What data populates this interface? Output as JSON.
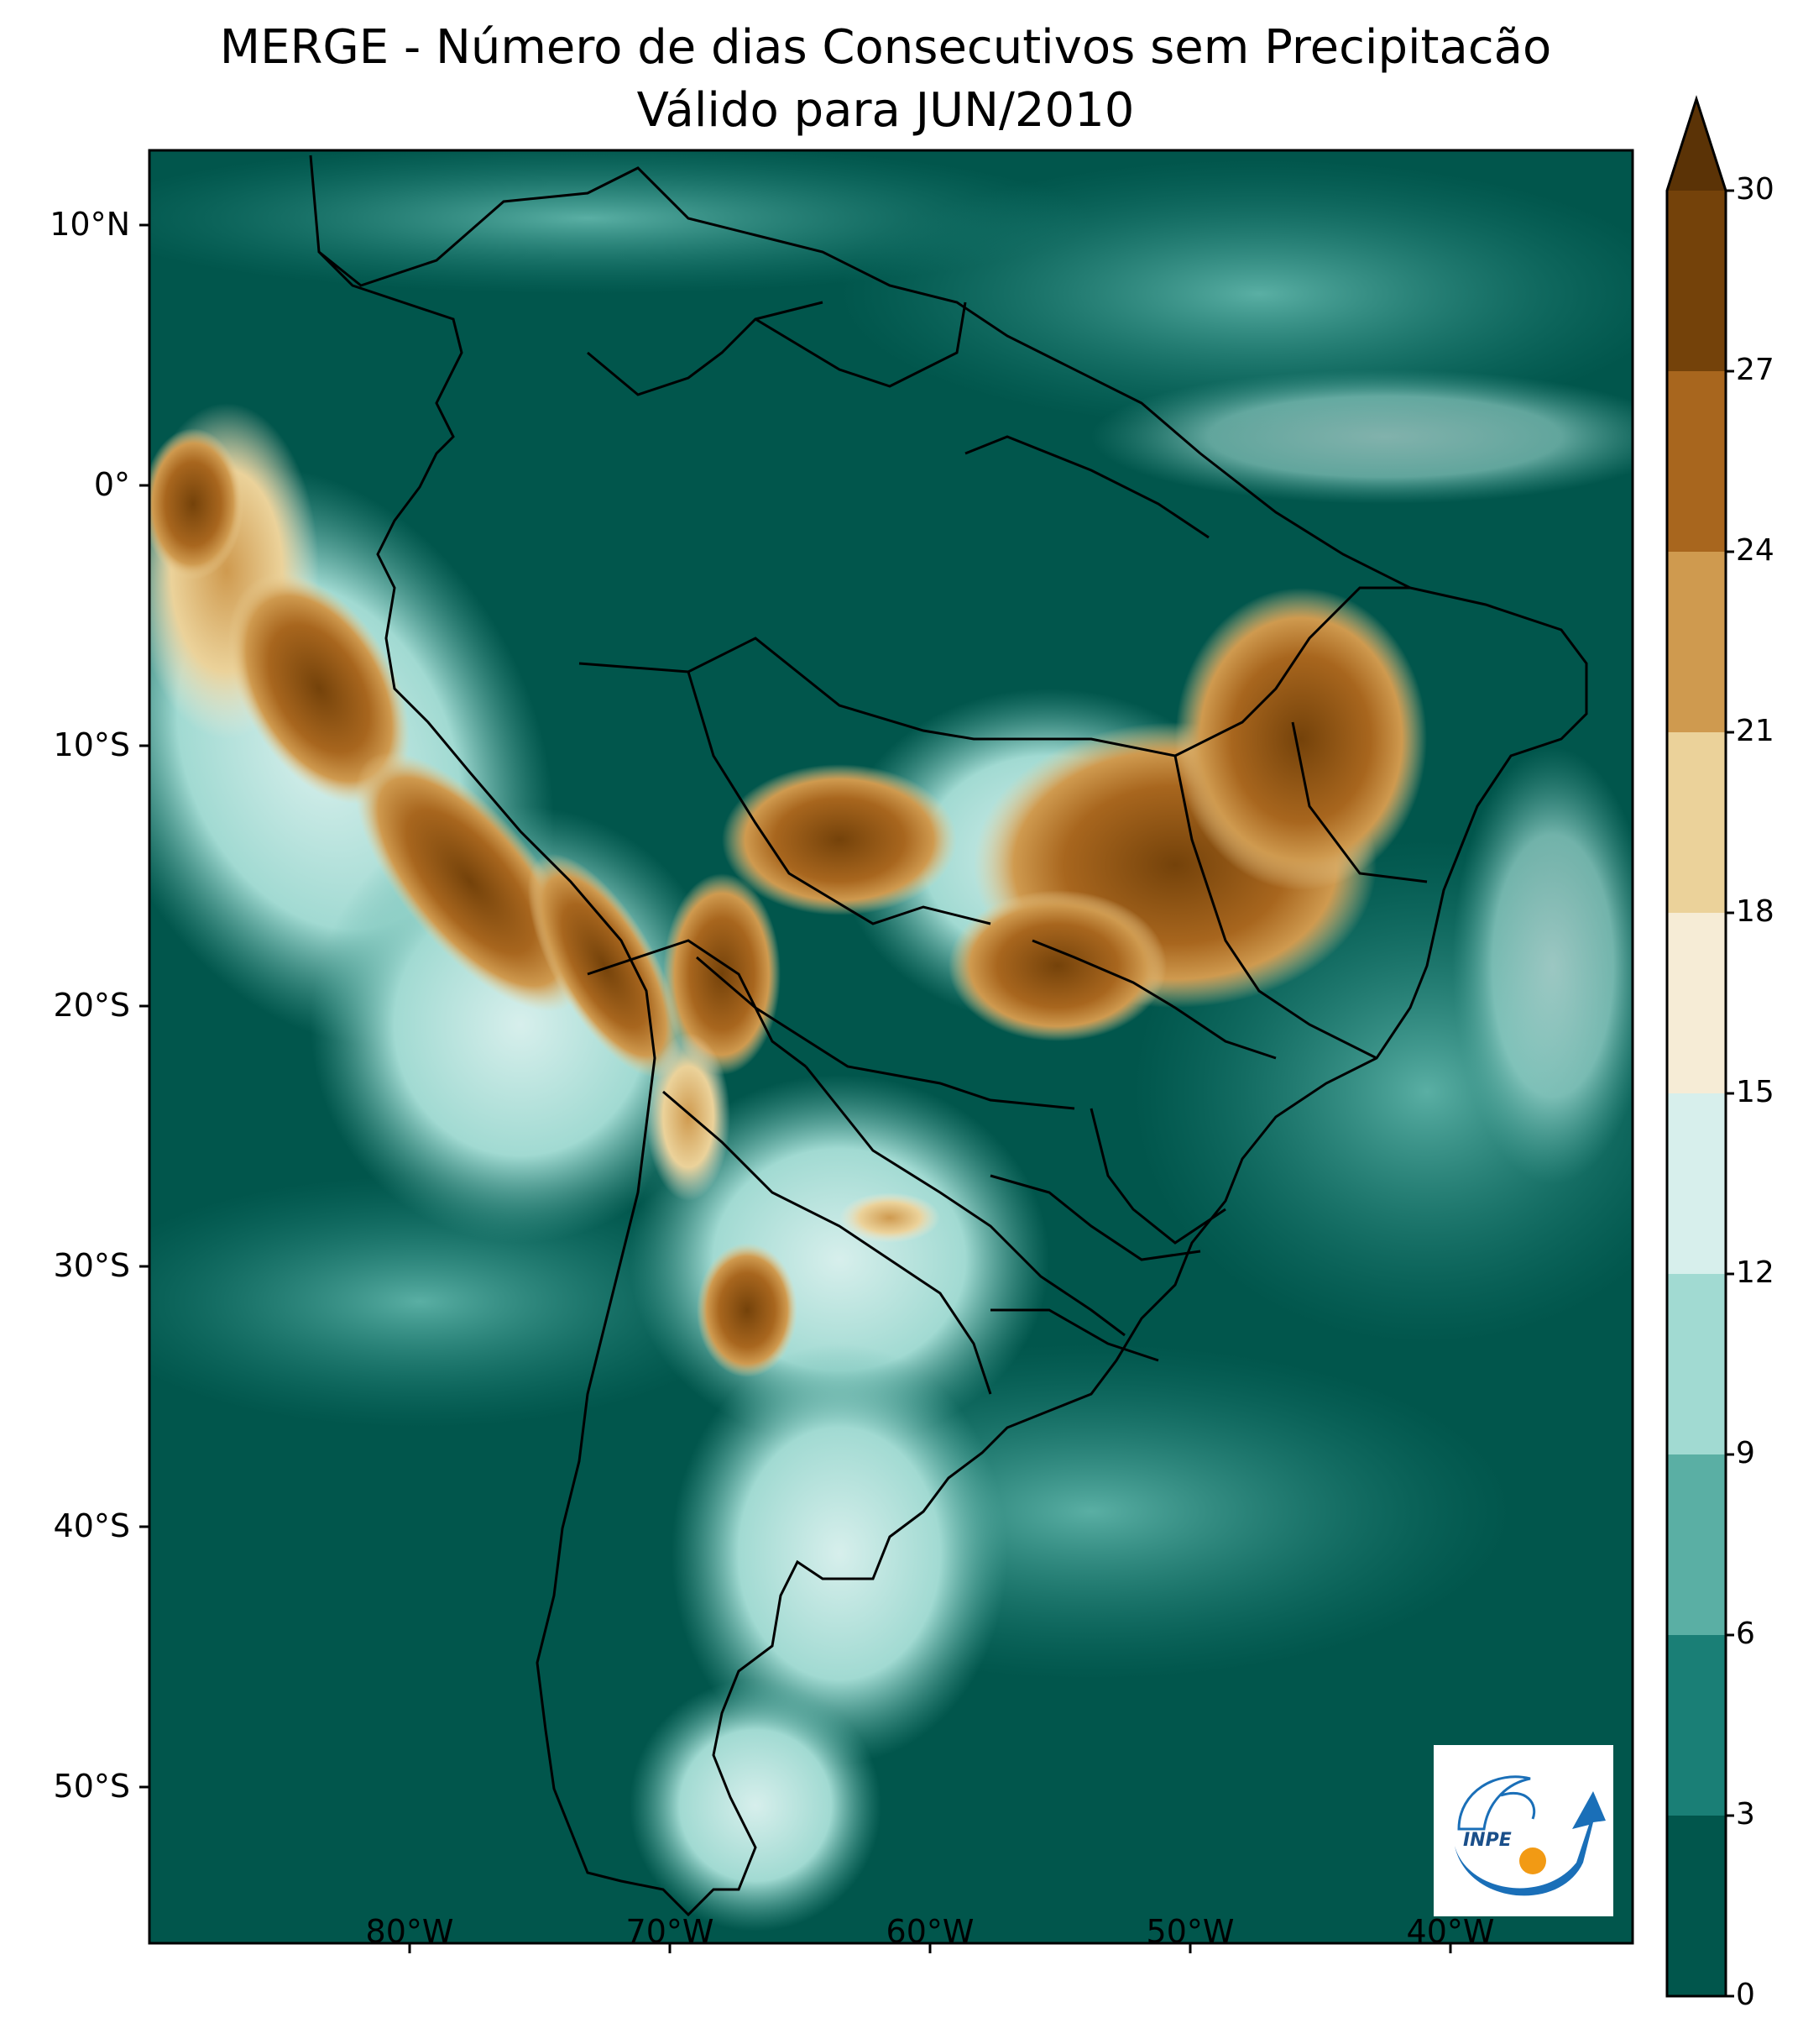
{
  "title": {
    "line1": "MERGE - Número de dias Consecutivos sem Precipitacão",
    "line2": "Válido para JUN/2010"
  },
  "map": {
    "lat_ticks": [
      "10°N",
      "0°",
      "10°S",
      "20°S",
      "30°S",
      "40°S",
      "50°S"
    ],
    "lon_ticks": [
      "80°W",
      "70°W",
      "60°W",
      "50°W",
      "40°W"
    ],
    "region": "South America",
    "ocean_dominant_class": "0-3",
    "dry_region_notes": [
      "Andes western slopes",
      "Central Brazil",
      "Northern Argentina"
    ]
  },
  "colorbar": {
    "ticks": [
      "0",
      "3",
      "6",
      "9",
      "12",
      "15",
      "18",
      "21",
      "24",
      "27",
      "30"
    ],
    "colors": [
      "#01564c",
      "#1a7f76",
      "#5aafa4",
      "#a1dad2",
      "#d7efec",
      "#f6ecd6",
      "#ebd29a",
      "#cf9a4f",
      "#a8661e",
      "#74420a",
      "#5b3306"
    ],
    "extend": "max"
  },
  "logo": {
    "text": "INPE",
    "colors": {
      "primary": "#1a6fb8",
      "accent": "#f29a14"
    }
  }
}
